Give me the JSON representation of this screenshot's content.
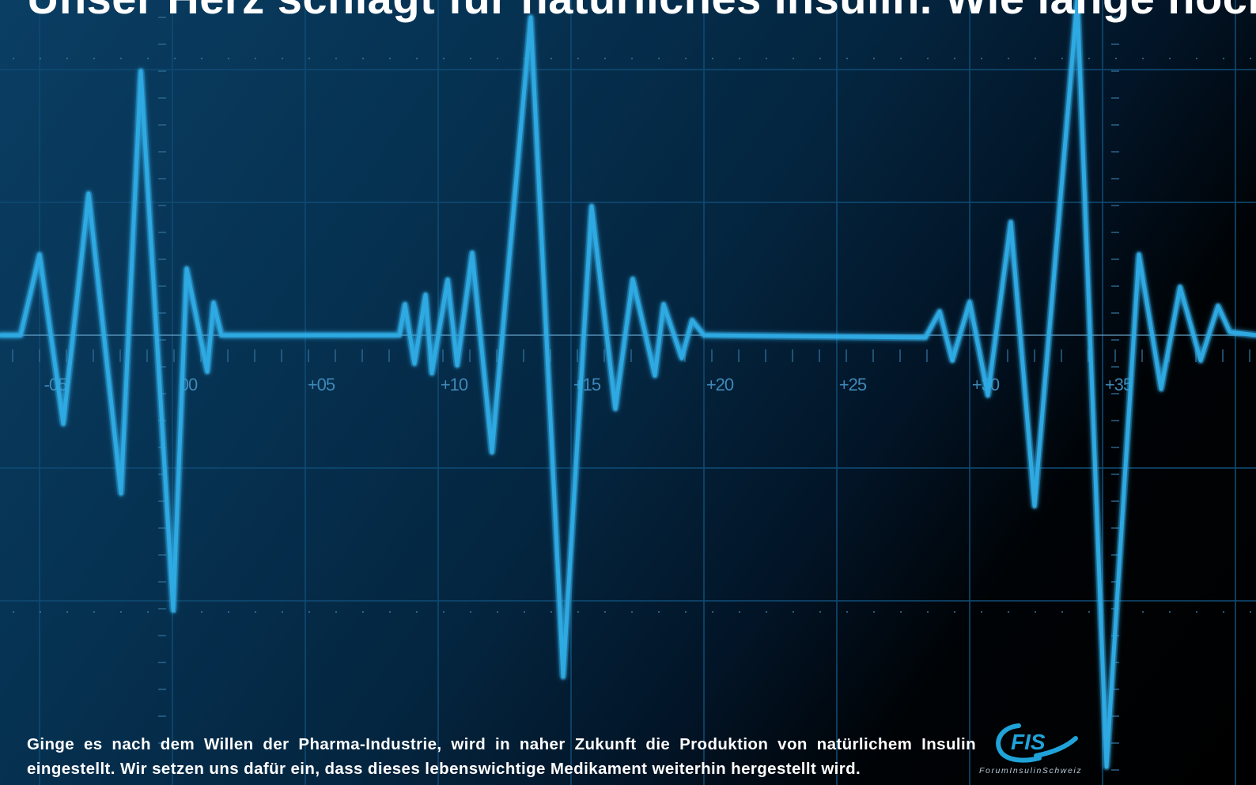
{
  "headline": "Unser Herz schlägt für natürliches Insulin. Wie lange noch?",
  "body": "Ginge es nach dem Willen der Pharma-Industrie, wird in naher Zukunft die Produktion von natürlichem Insulin eingestellt. Wir setzen uns dafür ein, dass dieses lebenswichtige Medikament weiterhin hergestellt wird.",
  "axis_labels": [
    "-05",
    "00",
    "+05",
    "+10",
    "+15",
    "+20",
    "+25",
    "+30",
    "+35"
  ],
  "logo": {
    "mark": "FIS",
    "tagline": "ForumInsulinSchweiz"
  },
  "colors": {
    "trace": "#2fa9e2",
    "grid": "#0f4a73",
    "logo": "#1fa3d9",
    "text": "#ffffff"
  }
}
